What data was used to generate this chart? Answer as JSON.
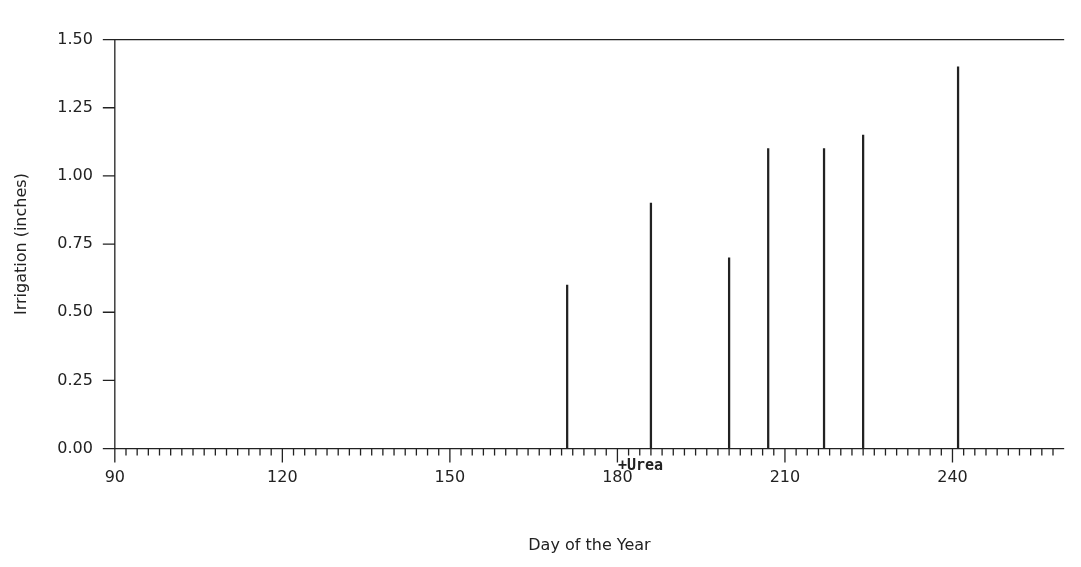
{
  "chart_data": {
    "type": "bar",
    "xlabel": "Day of the Year",
    "ylabel": "Irrigation (inches)",
    "x": [
      171,
      186,
      200,
      207,
      217,
      224,
      241
    ],
    "values": [
      0.6,
      0.9,
      0.7,
      1.1,
      1.1,
      1.15,
      1.4
    ],
    "color": "#222222",
    "xlim": [
      90,
      260
    ],
    "xticks": [
      90,
      {
        "value": 92,
        "label": null
      },
      {
        "value": 94,
        "label": null
      },
      {
        "value": 96,
        "label": null
      },
      {
        "value": 98,
        "label": null
      },
      {
        "value": 100,
        "label": null
      },
      {
        "value": 102,
        "label": null
      },
      {
        "value": 104,
        "label": null
      },
      {
        "value": 106,
        "label": null
      },
      {
        "value": 108,
        "label": null
      },
      {
        "value": 110,
        "label": null
      },
      {
        "value": 112,
        "label": null
      },
      {
        "value": 114,
        "label": null
      },
      {
        "value": 116,
        "label": null
      },
      {
        "value": 118,
        "label": null
      },
      120,
      {
        "value": 122,
        "label": null
      },
      {
        "value": 124,
        "label": null
      },
      {
        "value": 126,
        "label": null
      },
      {
        "value": 128,
        "label": null
      },
      {
        "value": 130,
        "label": null
      },
      {
        "value": 132,
        "label": null
      },
      {
        "value": 134,
        "label": null
      },
      {
        "value": 136,
        "label": null
      },
      {
        "value": 138,
        "label": null
      },
      {
        "value": 140,
        "label": null
      },
      {
        "value": 142,
        "label": null
      },
      {
        "value": 144,
        "label": null
      },
      {
        "value": 146,
        "label": null
      },
      {
        "value": 148,
        "label": null
      },
      150,
      {
        "value": 152,
        "label": null
      },
      {
        "value": 154,
        "label": null
      },
      {
        "value": 156,
        "label": null
      },
      {
        "value": 158,
        "label": null
      },
      {
        "value": 160,
        "label": null
      },
      {
        "value": 162,
        "label": null
      },
      {
        "value": 164,
        "label": null
      },
      {
        "value": 166,
        "label": null
      },
      {
        "value": 168,
        "label": null
      },
      {
        "value": 170,
        "label": null
      },
      {
        "value": 172,
        "label": null
      },
      {
        "value": 174,
        "label": null
      },
      {
        "value": 176,
        "label": null
      },
      {
        "value": 178,
        "label": null
      },
      180,
      {
        "value": 182,
        "label": null
      },
      {
        "value": 184,
        "label": null
      },
      {
        "value": 186,
        "label": null
      },
      {
        "value": 188,
        "label": null
      },
      {
        "value": 190,
        "label": null
      },
      {
        "value": 192,
        "label": null
      },
      {
        "value": 194,
        "label": null
      },
      {
        "value": 196,
        "label": null
      },
      {
        "value": 198,
        "label": null
      },
      {
        "value": 200,
        "label": null
      },
      {
        "value": 202,
        "label": null
      },
      {
        "value": 204,
        "label": null
      },
      {
        "value": 206,
        "label": null
      },
      {
        "value": 208,
        "label": null
      },
      210,
      {
        "value": 212,
        "label": null
      },
      {
        "value": 214,
        "label": null
      },
      {
        "value": 216,
        "label": null
      },
      {
        "value": 218,
        "label": null
      },
      {
        "value": 220,
        "label": null
      },
      {
        "value": 222,
        "label": null
      },
      {
        "value": 224,
        "label": null
      },
      {
        "value": 226,
        "label": null
      },
      {
        "value": 228,
        "label": null
      },
      {
        "value": 230,
        "label": null
      },
      {
        "value": 232,
        "label": null
      },
      {
        "value": 234,
        "label": null
      },
      {
        "value": 236,
        "label": null
      },
      {
        "value": 238,
        "label": null
      },
      240,
      {
        "value": 242,
        "label": null
      },
      {
        "value": 244,
        "label": null
      },
      {
        "value": 246,
        "label": null
      },
      {
        "value": 248,
        "label": null
      },
      {
        "value": 250,
        "label": null
      },
      {
        "value": 252,
        "label": null
      },
      {
        "value": 254,
        "label": null
      },
      {
        "value": 256,
        "label": null
      },
      {
        "value": 258,
        "label": null
      }
    ],
    "ylim": [
      0,
      1.5
    ],
    "yticks": [
      {
        "value": 0,
        "label": "0.00"
      },
      {
        "value": 0.25,
        "label": "0.25"
      },
      {
        "value": 0.5,
        "label": "0.50"
      },
      {
        "value": 0.75,
        "label": "0.75"
      },
      {
        "value": 1,
        "label": "1.00"
      },
      {
        "value": 1.25,
        "label": "1.25"
      },
      {
        "value": 1.5,
        "label": "1.50"
      }
    ],
    "grid": false,
    "legend": false,
    "annotations": [
      "+Urea"
    ]
  }
}
